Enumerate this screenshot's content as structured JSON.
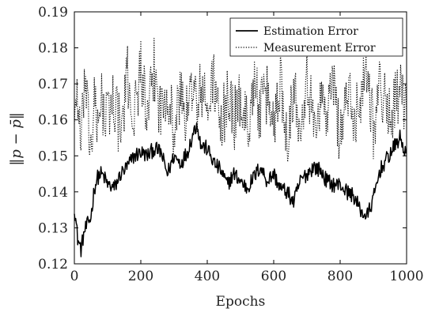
{
  "chart_data": {
    "type": "line",
    "title": "",
    "xlabel": "Epochs",
    "ylabel": "‖p − p̄‖",
    "xlim": [
      0,
      1000
    ],
    "ylim": [
      0.12,
      0.19
    ],
    "xticks": [
      "0",
      "200",
      "400",
      "600",
      "800",
      "1000"
    ],
    "yticks": [
      "0.12",
      "0.13",
      "0.14",
      "0.15",
      "0.16",
      "0.17",
      "0.18",
      "0.19"
    ],
    "grid": false,
    "legend_position": "top-right",
    "series": [
      {
        "name": "Estimation Error",
        "style": "solid",
        "color": "#000000",
        "x": [
          0,
          10,
          20,
          30,
          40,
          50,
          60,
          70,
          80,
          90,
          100,
          120,
          140,
          160,
          180,
          200,
          220,
          240,
          260,
          280,
          300,
          320,
          340,
          360,
          370,
          380,
          400,
          420,
          440,
          460,
          480,
          500,
          520,
          540,
          560,
          580,
          600,
          620,
          640,
          660,
          680,
          700,
          720,
          740,
          760,
          780,
          800,
          820,
          840,
          860,
          880,
          900,
          920,
          940,
          960,
          980,
          1000
        ],
        "values": [
          0.136,
          0.127,
          0.124,
          0.129,
          0.131,
          0.133,
          0.141,
          0.144,
          0.145,
          0.144,
          0.142,
          0.141,
          0.145,
          0.147,
          0.15,
          0.151,
          0.15,
          0.152,
          0.151,
          0.145,
          0.15,
          0.148,
          0.151,
          0.157,
          0.159,
          0.153,
          0.152,
          0.148,
          0.146,
          0.142,
          0.145,
          0.143,
          0.141,
          0.144,
          0.147,
          0.143,
          0.145,
          0.141,
          0.14,
          0.137,
          0.143,
          0.145,
          0.147,
          0.146,
          0.143,
          0.142,
          0.142,
          0.14,
          0.139,
          0.135,
          0.133,
          0.138,
          0.146,
          0.149,
          0.152,
          0.155,
          0.15
        ]
      },
      {
        "name": "Measurement Error",
        "style": "dotted",
        "color": "#000000",
        "x": [
          0,
          10,
          20,
          30,
          40,
          50,
          60,
          70,
          80,
          90,
          100,
          120,
          140,
          160,
          180,
          200,
          220,
          240,
          260,
          280,
          300,
          320,
          340,
          360,
          370,
          380,
          400,
          420,
          440,
          460,
          480,
          500,
          520,
          540,
          560,
          580,
          600,
          620,
          640,
          660,
          680,
          700,
          720,
          740,
          760,
          780,
          800,
          820,
          840,
          860,
          880,
          900,
          920,
          940,
          960,
          980,
          1000
        ],
        "values": [
          0.162,
          0.168,
          0.15,
          0.172,
          0.16,
          0.152,
          0.165,
          0.155,
          0.17,
          0.158,
          0.162,
          0.166,
          0.156,
          0.172,
          0.16,
          0.176,
          0.158,
          0.174,
          0.162,
          0.17,
          0.156,
          0.168,
          0.16,
          0.174,
          0.158,
          0.17,
          0.162,
          0.172,
          0.155,
          0.168,
          0.16,
          0.166,
          0.158,
          0.17,
          0.162,
          0.167,
          0.159,
          0.171,
          0.156,
          0.168,
          0.16,
          0.173,
          0.158,
          0.166,
          0.162,
          0.17,
          0.155,
          0.168,
          0.16,
          0.166,
          0.176,
          0.158,
          0.17,
          0.162,
          0.164,
          0.168,
          0.16
        ]
      }
    ]
  }
}
